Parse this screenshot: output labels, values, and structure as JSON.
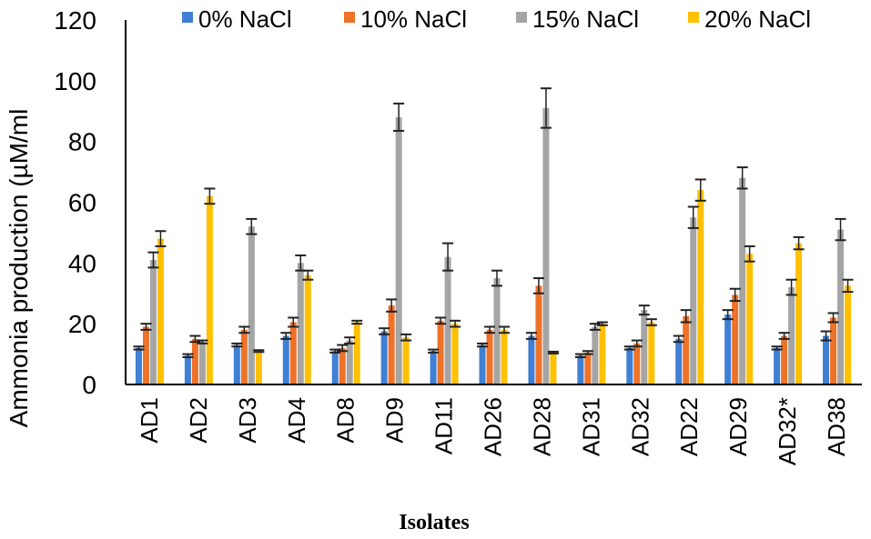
{
  "chart_data": {
    "type": "bar",
    "title": "",
    "xlabel": "Isolates",
    "ylabel": "Ammonia production (µM/ml",
    "ylim": [
      0,
      120
    ],
    "yticks": [
      0,
      20,
      40,
      60,
      80,
      100,
      120
    ],
    "legend_position": "top",
    "categories": [
      "AD1",
      "AD2",
      "AD3",
      "AD4",
      "AD8",
      "AD9",
      "AD11",
      "AD26",
      "AD28",
      "AD31",
      "AD32",
      "AD22",
      "AD29",
      "AD32*",
      "AD38"
    ],
    "series": [
      {
        "name": "0% NaCl",
        "color": "#3f7fd4",
        "values": [
          12,
          9.5,
          13,
          16,
          11,
          17.5,
          11,
          13,
          16,
          9.5,
          12,
          15,
          23,
          12,
          16
        ],
        "errors": [
          0.5,
          0.5,
          0.5,
          1,
          0.5,
          1,
          0.5,
          0.5,
          1,
          0.5,
          0.5,
          1,
          1.5,
          0.5,
          1.5
        ]
      },
      {
        "name": "10% NaCl",
        "color": "#ee7228",
        "values": [
          19,
          15,
          18,
          20.5,
          12,
          26,
          21,
          18,
          32.5,
          10.5,
          13.5,
          22.5,
          29.5,
          16,
          22
        ],
        "errors": [
          1,
          1,
          1,
          1.5,
          1,
          2,
          1,
          1,
          2.5,
          0.5,
          1,
          2,
          2,
          1,
          1.5
        ]
      },
      {
        "name": "15% NaCl",
        "color": "#a5a5a5",
        "values": [
          41,
          14,
          52,
          40,
          14.5,
          88,
          42,
          35,
          91,
          19,
          24.5,
          55,
          68,
          32,
          51
        ],
        "errors": [
          2.5,
          0.5,
          2.5,
          2.5,
          1,
          4.5,
          4.5,
          2.5,
          6.5,
          1,
          1.5,
          3.5,
          3.5,
          2.5,
          3.5
        ]
      },
      {
        "name": "20% NaCl",
        "color": "#ffc000",
        "values": [
          48,
          62,
          11,
          36,
          20.5,
          15.5,
          20,
          18,
          10.5,
          20,
          20.5,
          64,
          43,
          46.5,
          32.5
        ],
        "errors": [
          2.5,
          2.5,
          0.3,
          1.5,
          0.5,
          1,
          1,
          1,
          0.3,
          0.5,
          1,
          3.5,
          2.5,
          2,
          2
        ]
      }
    ]
  }
}
